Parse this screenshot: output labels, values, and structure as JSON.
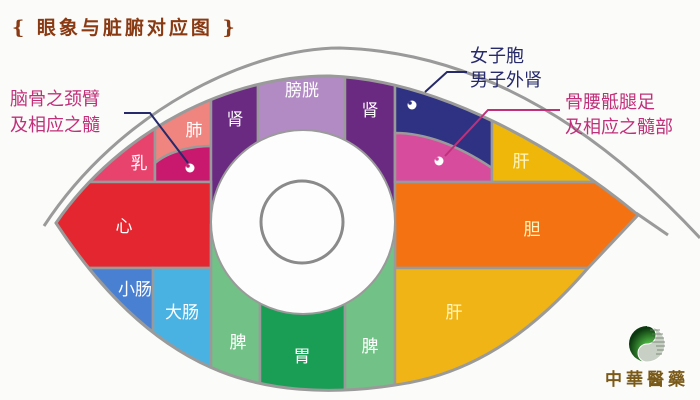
{
  "title": "{ 眼象与脏腑对应图 }",
  "colors": {
    "title": "#8a3a12",
    "annotation_magenta": "#c0307a",
    "annotation_navy": "#26296a",
    "outline": "#9a9a9a"
  },
  "regions": {
    "ru": {
      "label": "乳",
      "color": "#e8436c"
    },
    "fei": {
      "label": "肺",
      "color": "#f0847e"
    },
    "naogu_spot": {
      "color": "#c8196e"
    },
    "shen_left": {
      "label": "肾",
      "color": "#6b2a82"
    },
    "pangguang": {
      "label": "膀胱",
      "color": "#b28ac4"
    },
    "shen_right": {
      "label": "肾",
      "color": "#6b2a82"
    },
    "nvzibao": {
      "color": "#2f3282"
    },
    "guyao_spot": {
      "color": "#d84c9e"
    },
    "gan_top": {
      "label": "肝",
      "color": "#efb70a"
    },
    "xin": {
      "label": "心",
      "color": "#e3262f"
    },
    "dan": {
      "label": "胆",
      "color": "#f47212"
    },
    "xiaochang": {
      "label": "小肠",
      "color": "#4a80d2"
    },
    "dachang": {
      "label": "大肠",
      "color": "#4ab2e2"
    },
    "pi_left": {
      "label": "脾",
      "color": "#72c186"
    },
    "wei": {
      "label": "胃",
      "color": "#1a9e55"
    },
    "pi_right": {
      "label": "脾",
      "color": "#72c186"
    },
    "gan_bottom": {
      "label": "肝",
      "color": "#f0b416"
    }
  },
  "annotations": {
    "naogu": [
      "脑骨之颈臂",
      "及相应之髓"
    ],
    "nvzibao": [
      "女子胞",
      "男子外肾"
    ],
    "guyao": [
      "骨腰骶腿足",
      "及相应之髓部"
    ]
  },
  "logo": {
    "text": "中華醫藥",
    "icon": "yin-yang-logo-icon"
  }
}
